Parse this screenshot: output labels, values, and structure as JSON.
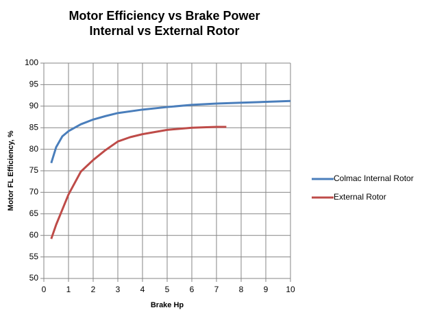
{
  "chart_data": {
    "type": "line",
    "title": [
      "Motor Efficiency vs Brake Power",
      "Internal vs External Rotor"
    ],
    "x_label": "Brake Hp",
    "y_label": "Motor FL Efficiency, %",
    "xlim": [
      0,
      10
    ],
    "xticks": [
      0,
      1,
      2,
      3,
      4,
      5,
      6,
      7,
      8,
      9,
      10
    ],
    "ylim": [
      50,
      100
    ],
    "yticks": [
      50,
      55,
      60,
      65,
      70,
      75,
      80,
      85,
      90,
      95,
      100
    ],
    "grid": true,
    "legend": "right",
    "series": [
      {
        "name": "Colmac Internal Rotor",
        "color": "#4a7ebb",
        "x": [
          0.3,
          0.5,
          0.75,
          1,
          1.5,
          2,
          2.5,
          3,
          4,
          5,
          6,
          7,
          8,
          9,
          10
        ],
        "values": [
          76.8,
          80.5,
          83,
          84.2,
          85.8,
          86.9,
          87.7,
          88.4,
          89.2,
          89.8,
          90.3,
          90.6,
          90.8,
          91.0,
          91.2
        ]
      },
      {
        "name": "External Rotor",
        "color": "#be4b48",
        "x": [
          0.3,
          0.5,
          0.75,
          1,
          1.5,
          2,
          2.5,
          3,
          3.5,
          4,
          5,
          6,
          7,
          7.4
        ],
        "values": [
          59.2,
          62.5,
          66,
          69.5,
          74.8,
          77.5,
          79.8,
          81.8,
          82.8,
          83.5,
          84.5,
          85.0,
          85.2,
          85.2
        ]
      }
    ]
  }
}
